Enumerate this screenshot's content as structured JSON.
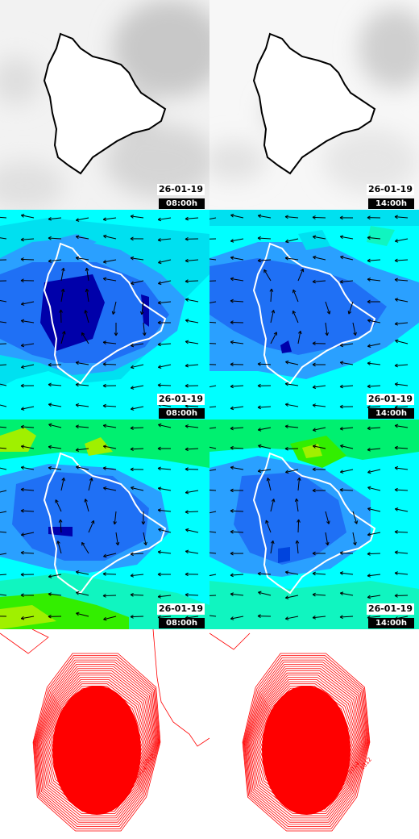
{
  "panels": [
    {
      "row": "cloud-cover",
      "date": "26-01-19",
      "time": "08:00h"
    },
    {
      "row": "cloud-cover",
      "date": "26-01-19",
      "time": "14:00h"
    },
    {
      "row": "wind-low",
      "date": "26-01-19",
      "time": "08:00h"
    },
    {
      "row": "wind-low",
      "date": "26-01-19",
      "time": "14:00h"
    },
    {
      "row": "wind-high",
      "date": "26-01-19",
      "time": "08:00h"
    },
    {
      "row": "wind-high",
      "date": "26-01-19",
      "time": "14:00h"
    },
    {
      "row": "pressure-contours",
      "date": "",
      "time": ""
    },
    {
      "row": "pressure-contours",
      "date": "",
      "time": ""
    }
  ],
  "pressure_labels": [
    "1012",
    "1014",
    "1016"
  ],
  "colors": {
    "coastline_dark": "#000000",
    "coastline_light": "#ffffff",
    "contour": "#ff0000",
    "wind_levels": [
      "#0000aa",
      "#0044dd",
      "#1f70f5",
      "#2aa0ff",
      "#00e0f0",
      "#00ffff",
      "#10f5c0",
      "#00f070",
      "#33ee00",
      "#a0f000"
    ],
    "cloud_gray": "#d0d0d0"
  }
}
